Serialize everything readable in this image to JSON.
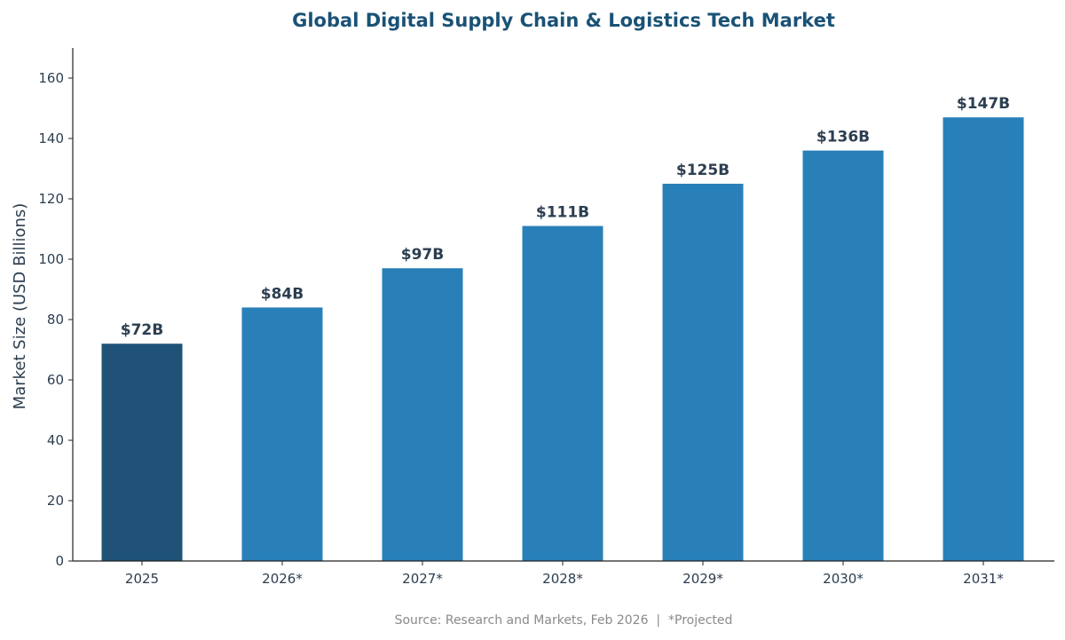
{
  "chart_data": {
    "type": "bar",
    "title": "Global Digital Supply Chain & Logistics Tech Market",
    "xlabel": "",
    "ylabel": "Market Size (USD Billions)",
    "categories": [
      "2025",
      "2026*",
      "2027*",
      "2028*",
      "2029*",
      "2030*",
      "2031*"
    ],
    "values": [
      72,
      84,
      97,
      111,
      125,
      136,
      147
    ],
    "data_labels": [
      "$72B",
      "$84B",
      "$97B",
      "$111B",
      "$125B",
      "$136B",
      "$147B"
    ],
    "ylim": [
      0,
      170
    ],
    "yticks": [
      0,
      20,
      40,
      60,
      80,
      100,
      120,
      140,
      160
    ],
    "grid": false,
    "colors": {
      "actual": "#1f5276",
      "projected": "#2980b9",
      "title": "#1a5276",
      "labels": "#2c3e50"
    },
    "footnote": "Source: Research and Markets, Feb 2026  |  *Projected"
  }
}
